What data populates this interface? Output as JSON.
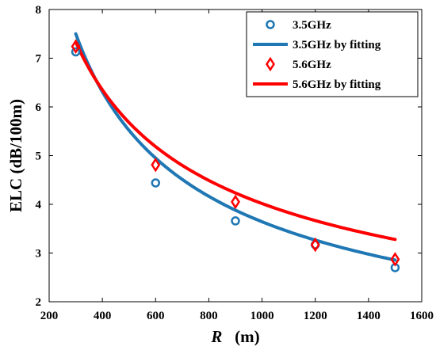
{
  "chart_data": {
    "type": "scatter",
    "xlabel_var": "R",
    "xlabel_unit": "(m)",
    "ylabel": "ELC (dB/100m)",
    "xlim": [
      200,
      1600
    ],
    "ylim": [
      2,
      8
    ],
    "xticks": [
      200,
      400,
      600,
      800,
      1000,
      1200,
      1400,
      1600
    ],
    "yticks": [
      2,
      3,
      4,
      5,
      6,
      7,
      8
    ],
    "grid": false,
    "legend_position": "top-right",
    "series": [
      {
        "name": "3.5GHz",
        "kind": "markers",
        "marker": "circle",
        "color": "#1f77b4",
        "x": [
          300,
          600,
          900,
          1200,
          1500
        ],
        "y": [
          7.13,
          4.44,
          3.66,
          3.17,
          2.7
        ]
      },
      {
        "name": "3.5GHz by fitting",
        "kind": "line",
        "color": "#1f77b4",
        "model": {
          "a": 14.5,
          "b": -0.6
        }
      },
      {
        "name": "5.6GHz",
        "kind": "markers",
        "marker": "diamond",
        "color": "#ff0000",
        "x": [
          300,
          600,
          900,
          1200,
          1500
        ],
        "y": [
          7.24,
          4.81,
          4.05,
          3.17,
          2.87
        ]
      },
      {
        "name": "5.6GHz by fitting",
        "kind": "line",
        "color": "#ff0000",
        "model": {
          "a": 12.7,
          "b": -0.5
        }
      }
    ]
  }
}
